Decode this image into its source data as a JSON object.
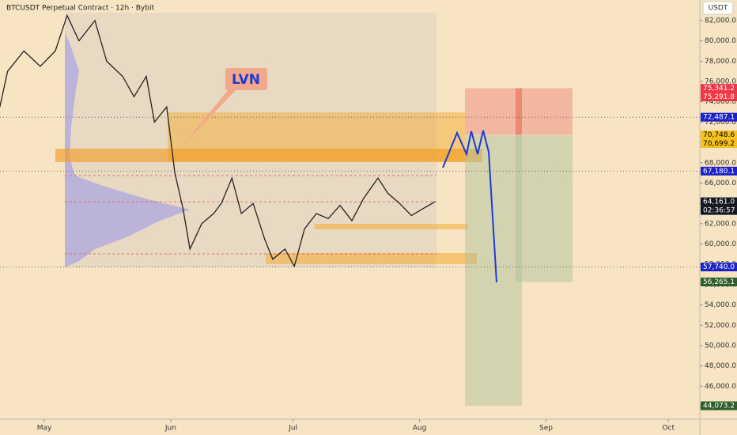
{
  "chart_data": {
    "type": "line",
    "title": "BTCUSDT Perpetual Contract · 12h · Bybit",
    "currency": "USDT",
    "annotation": "LVN",
    "countdown": "02:36:57",
    "color": "#222222",
    "x": [
      -10.9,
      -9,
      -5,
      -1,
      2.7,
      5.6,
      8.5,
      12.4,
      15.3,
      19.2,
      22,
      25,
      27,
      30,
      32,
      34,
      35.7,
      38.6,
      41.5,
      43.4,
      46,
      48.3,
      51.2,
      54,
      56,
      59,
      61.3,
      63.8,
      66.7,
      69.6,
      72.5,
      75.4,
      78.3,
      81.8,
      84.2,
      87.1,
      90,
      92.9,
      95.8
    ],
    "values": [
      73500,
      77000,
      79000,
      77500,
      79000,
      82500,
      80000,
      82000,
      78000,
      76500,
      74500,
      76500,
      72000,
      73500,
      67000,
      63500,
      59500,
      62000,
      63000,
      64000,
      66500,
      63000,
      64000,
      60500,
      58500,
      59500,
      57800,
      61500,
      63000,
      62500,
      63800,
      62300,
      64500,
      66500,
      65000,
      64000,
      62800,
      63500,
      64161
    ],
    "xlim": [
      -10.86,
      160.7
    ],
    "xticks": [
      {
        "value": 0,
        "label": "May"
      },
      {
        "value": 31,
        "label": "Jun"
      },
      {
        "value": 61,
        "label": "Jul"
      },
      {
        "value": 92,
        "label": "Aug"
      },
      {
        "value": 123,
        "label": "Sep"
      },
      {
        "value": 153,
        "label": "Oct"
      }
    ],
    "ylim": [
      42754,
      84025
    ],
    "yticks": [
      {
        "value": 82000,
        "label": "82,000.0"
      },
      {
        "value": 80000,
        "label": "80,000.0"
      },
      {
        "value": 78000,
        "label": "78,000.0"
      },
      {
        "value": 76000,
        "label": "76,000.0"
      },
      {
        "value": 74000,
        "label": "74,000.0"
      },
      {
        "value": 72000,
        "label": "72,000.0"
      },
      {
        "value": 70000,
        "label": "70,000.0"
      },
      {
        "value": 68000,
        "label": "68,000.0"
      },
      {
        "value": 66000,
        "label": "66,000.0"
      },
      {
        "value": 64000,
        "label": "64,000.0"
      },
      {
        "value": 62000,
        "label": "62,000.0"
      },
      {
        "value": 60000,
        "label": "60,000.0"
      },
      {
        "value": 58000,
        "label": "58,000.0"
      },
      {
        "value": 56000,
        "label": "56,000.0"
      },
      {
        "value": 54000,
        "label": "54,000.0"
      },
      {
        "value": 52000,
        "label": "52,000.0"
      },
      {
        "value": 50000,
        "label": "50,000.0"
      },
      {
        "value": 48000,
        "label": "48,000.0"
      },
      {
        "value": 46000,
        "label": "46,000.0"
      },
      {
        "value": 44000,
        "label": "44,000.0"
      }
    ],
    "price_labels": [
      {
        "value": 75341.2,
        "label": "75,341.2",
        "color": "#f23645"
      },
      {
        "value": 75291.8,
        "label": "75,291.8",
        "color": "#f23645"
      },
      {
        "value": 72487.1,
        "label": "72,487.1",
        "color": "#1e22c8"
      },
      {
        "value": 70748.6,
        "label": "70,748.6",
        "color": "#f7c21b"
      },
      {
        "value": 70699.2,
        "label": "70,699.2",
        "color": "#f7c21b"
      },
      {
        "value": 67180.1,
        "label": "67,180.1",
        "color": "#1e22c8"
      },
      {
        "value": 64161.0,
        "label": "64,161.0",
        "color": "#131722"
      },
      {
        "value": 57740.0,
        "label": "57,740.0",
        "color": "#1e22c8"
      },
      {
        "value": 56265.1,
        "label": "56,265.1",
        "color": "#2e5e2a"
      },
      {
        "value": 44073.2,
        "label": "44,073.2",
        "color": "#2e5e2a"
      }
    ]
  }
}
